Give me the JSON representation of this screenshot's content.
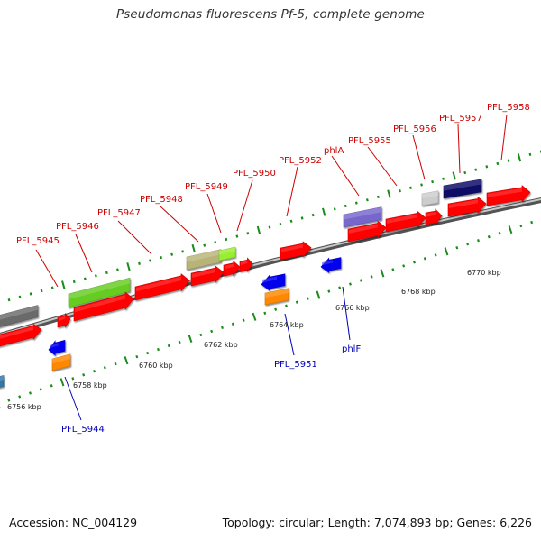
{
  "header": {
    "title": "Pseudomonas fluorescens Pf-5, complete genome"
  },
  "footer": {
    "accession": "Accession: NC_004129",
    "topology": "Topology: circular; Length: 7,074,893 bp; Genes: 6,226"
  },
  "colors": {
    "forward_label": "#cc0000",
    "reverse_label": "#0000b4",
    "backbone": "#808080",
    "tick_mark": "#1a8c1a"
  },
  "kbp_labels": [
    {
      "text": "6756 kbp"
    },
    {
      "text": "6758 kbp"
    },
    {
      "text": "6760 kbp"
    },
    {
      "text": "6762 kbp"
    },
    {
      "text": "6764 kbp"
    },
    {
      "text": "6766 kbp"
    },
    {
      "text": "6768 kbp"
    },
    {
      "text": "6770 kbp"
    }
  ],
  "forward_gene_labels": [
    {
      "text": "PFL_5945"
    },
    {
      "text": "PFL_5946"
    },
    {
      "text": "PFL_5947"
    },
    {
      "text": "PFL_5948"
    },
    {
      "text": "PFL_5949"
    },
    {
      "text": "PFL_5950"
    },
    {
      "text": "PFL_5952"
    },
    {
      "text": "phlA"
    },
    {
      "text": "PFL_5955"
    },
    {
      "text": "PFL_5956"
    },
    {
      "text": "PFL_5957"
    },
    {
      "text": "PFL_5958"
    }
  ],
  "reverse_gene_labels": [
    {
      "text": "PFL_5944"
    },
    {
      "text": "PFL_5951"
    },
    {
      "text": "phlF"
    }
  ],
  "features": [
    {
      "track": "forward",
      "color": "#6b6b6b",
      "shape": "box"
    },
    {
      "track": "forward",
      "color": "#ff0000",
      "shape": "arrow"
    },
    {
      "track": "forward",
      "color": "#ff0000",
      "shape": "arrow"
    },
    {
      "track": "forward",
      "color": "#66cc22",
      "shape": "box"
    },
    {
      "track": "forward",
      "color": "#ff0000",
      "shape": "arrow"
    },
    {
      "track": "forward",
      "color": "#ff0000",
      "shape": "arrow"
    },
    {
      "track": "forward",
      "color": "#ff0000",
      "shape": "arrow"
    },
    {
      "track": "forward",
      "color": "#b8b478",
      "shape": "box"
    },
    {
      "track": "forward",
      "color": "#99ee33",
      "shape": "box"
    },
    {
      "track": "forward",
      "color": "#ff0000",
      "shape": "arrow"
    },
    {
      "track": "forward",
      "color": "#ff0000",
      "shape": "arrow"
    },
    {
      "track": "forward",
      "color": "#ff0000",
      "shape": "arrow"
    },
    {
      "track": "forward",
      "color": "#7766cc",
      "shape": "box"
    },
    {
      "track": "forward",
      "color": "#ff0000",
      "shape": "arrow"
    },
    {
      "track": "forward",
      "color": "#ff0000",
      "shape": "arrow"
    },
    {
      "track": "forward",
      "color": "#ff0000",
      "shape": "arrow"
    },
    {
      "track": "forward",
      "color": "#cccccc",
      "shape": "box"
    },
    {
      "track": "forward",
      "color": "#0a0a66",
      "shape": "box"
    },
    {
      "track": "forward",
      "color": "#ff0000",
      "shape": "arrow"
    },
    {
      "track": "forward",
      "color": "#ff0000",
      "shape": "arrow"
    },
    {
      "track": "reverse",
      "color": "#3377aa",
      "shape": "box"
    },
    {
      "track": "reverse",
      "color": "#0000ee",
      "shape": "arrow"
    },
    {
      "track": "reverse",
      "color": "#ff8800",
      "shape": "box"
    },
    {
      "track": "reverse",
      "color": "#0000ee",
      "shape": "arrow"
    },
    {
      "track": "reverse",
      "color": "#ff8800",
      "shape": "box"
    },
    {
      "track": "reverse",
      "color": "#0000ee",
      "shape": "arrow"
    }
  ]
}
